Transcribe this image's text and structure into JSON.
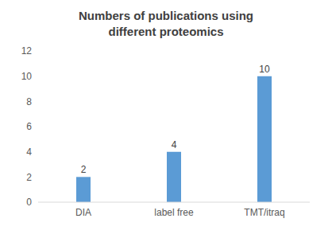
{
  "chart_data": {
    "type": "bar",
    "title": "Numbers of publications using different proteomics",
    "categories": [
      "DIA",
      "label free",
      "TMT/itraq"
    ],
    "values": [
      2,
      4,
      10
    ],
    "color": "#5b9bd5",
    "ylim": [
      0,
      12
    ],
    "yticks": [
      0,
      2,
      4,
      6,
      8,
      10,
      12
    ],
    "grid": false,
    "data_labels": true
  }
}
